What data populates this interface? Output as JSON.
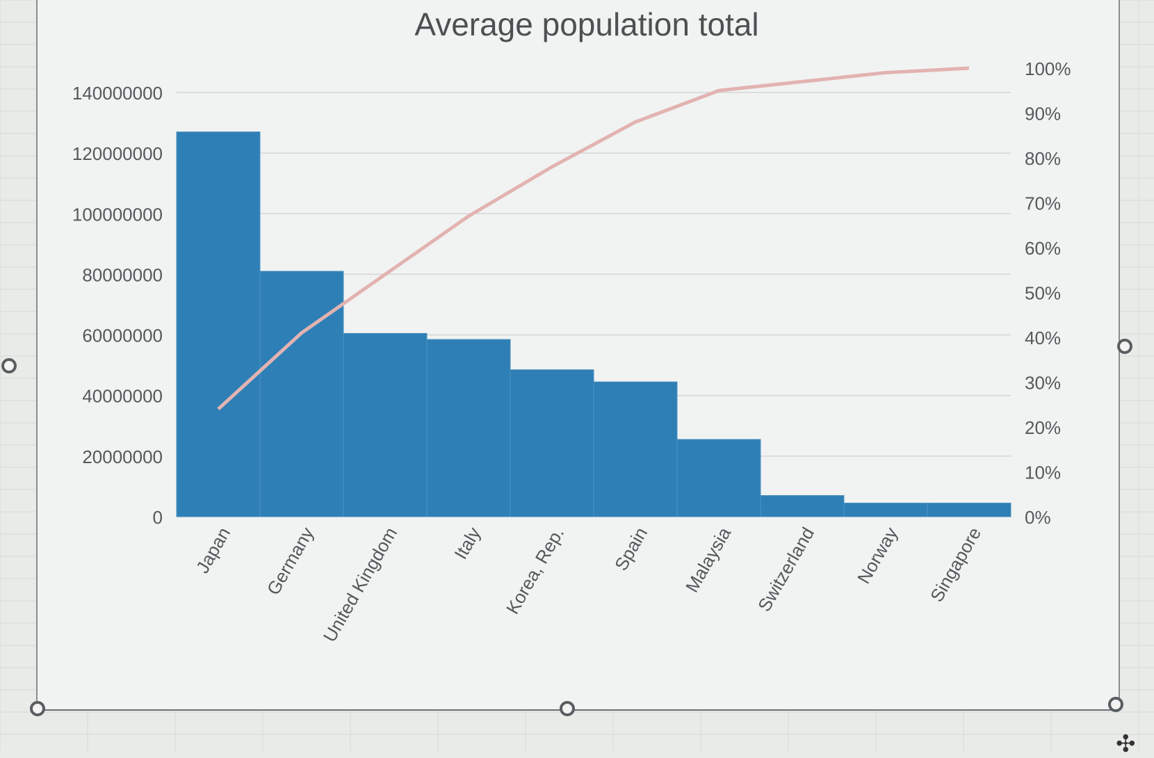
{
  "chart_data": {
    "type": "bar",
    "title": "Average population total",
    "categories": [
      "Japan",
      "Germany",
      "United Kingdom",
      "Italy",
      "Korea, Rep.",
      "Spain",
      "Malaysia",
      "Switzerland",
      "Norway",
      "Singapore"
    ],
    "series": [
      {
        "type": "bar",
        "values": [
          127000000,
          81000000,
          60500000,
          58500000,
          48500000,
          44500000,
          25500000,
          7000000,
          4500000,
          4500000
        ]
      },
      {
        "type": "line",
        "axis": "right",
        "values": [
          24,
          41,
          54,
          67,
          78,
          88,
          95,
          97,
          99,
          100
        ]
      }
    ],
    "ylim": [
      0,
      140000000
    ],
    "yticks": [
      "0",
      "20000000",
      "40000000",
      "60000000",
      "80000000",
      "100000000",
      "120000000",
      "140000000"
    ],
    "y2lim": [
      0,
      100
    ],
    "y2ticks": [
      "0%",
      "10%",
      "20%",
      "30%",
      "40%",
      "50%",
      "60%",
      "70%",
      "80%",
      "90%",
      "100%"
    ],
    "xlabel": "",
    "ylabel": "",
    "grid": true,
    "legend": "none",
    "colors": {
      "bar": "#2e7fb6",
      "line": "#e2b3b1",
      "grid": "#d4d6d6",
      "text": "#55585b"
    }
  }
}
